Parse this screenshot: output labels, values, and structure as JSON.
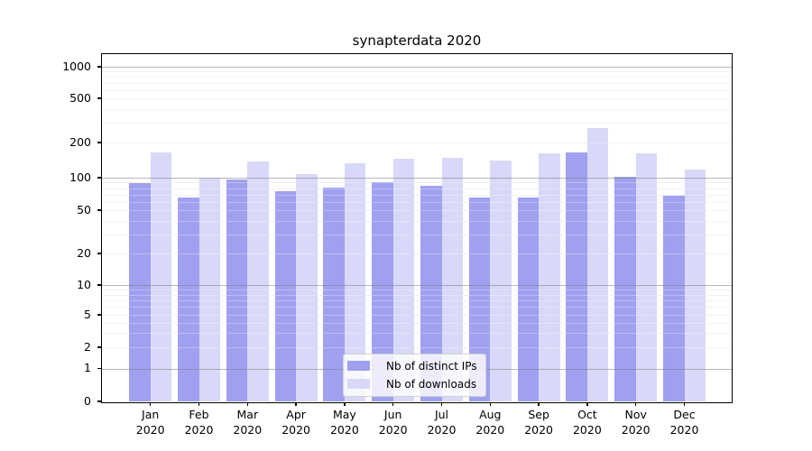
{
  "chart_data": {
    "type": "bar",
    "title": "synapterdata 2020",
    "categories": [
      "Jan 2020",
      "Feb 2020",
      "Mar 2020",
      "Apr 2020",
      "May 2020",
      "Jun 2020",
      "Jul 2020",
      "Aug 2020",
      "Sep 2020",
      "Oct 2020",
      "Nov 2020",
      "Dec 2020"
    ],
    "series": [
      {
        "name": "Nb of distinct IPs",
        "color": "#a0a0f0",
        "values": [
          89,
          65,
          96,
          75,
          81,
          90,
          84,
          66,
          66,
          165,
          102,
          68
        ]
      },
      {
        "name": "Nb of downloads",
        "color": "#d8d8f8",
        "values": [
          165,
          100,
          137,
          108,
          133,
          145,
          148,
          140,
          162,
          270,
          163,
          118
        ]
      }
    ],
    "xlabel": "",
    "ylabel": "",
    "yscale": "symlog",
    "yticks": [
      0,
      1,
      2,
      5,
      10,
      20,
      50,
      100,
      200,
      500,
      1000
    ],
    "ylim": [
      0,
      1300
    ],
    "grid": true,
    "legend_position": "lower center",
    "colors": {
      "major_gridline": "#c8c8c8",
      "minor_gridline": "#ececec",
      "axis": "#000000",
      "background": "#ffffff"
    }
  }
}
